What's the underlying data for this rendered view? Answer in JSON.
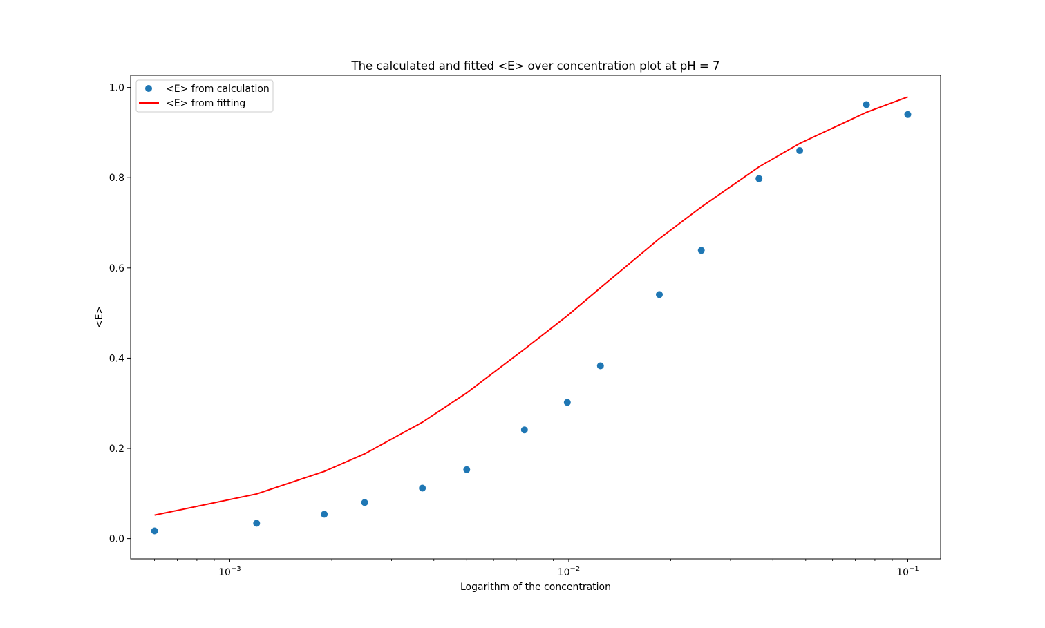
{
  "chart_data": {
    "type": "scatter",
    "title": "The calculated and fitted <E> over concentration plot at pH = 7",
    "xlabel": "Logarithm of the concentration",
    "ylabel": "<E>",
    "xscale": "log",
    "xlim": [
      0.00051,
      0.125
    ],
    "ylim": [
      -0.045,
      1.027
    ],
    "grid": false,
    "legend_position": "upper-left",
    "x_ticks": [
      {
        "value": 0.001,
        "base": "10",
        "exp": "−3"
      },
      {
        "value": 0.01,
        "base": "10",
        "exp": "−2"
      },
      {
        "value": 0.1,
        "base": "10",
        "exp": "−1"
      }
    ],
    "y_ticks": [
      {
        "value": 0.0,
        "label": "0.0"
      },
      {
        "value": 0.2,
        "label": "0.2"
      },
      {
        "value": 0.4,
        "label": "0.4"
      },
      {
        "value": 0.6,
        "label": "0.6"
      },
      {
        "value": 0.8,
        "label": "0.8"
      },
      {
        "value": 1.0,
        "label": "1.0"
      }
    ],
    "series": [
      {
        "name": "<E> from calculation",
        "kind": "scatter",
        "color": "#1f77b4",
        "x": [
          0.0006,
          0.0012,
          0.0019,
          0.0025,
          0.0037,
          0.005,
          0.0074,
          0.0099,
          0.0124,
          0.0185,
          0.0246,
          0.0364,
          0.048,
          0.0755,
          0.1
        ],
        "y": [
          0.017,
          0.034,
          0.054,
          0.08,
          0.112,
          0.153,
          0.241,
          0.302,
          0.383,
          0.541,
          0.639,
          0.798,
          0.86,
          0.962,
          0.94
        ]
      },
      {
        "name": "<E> from fitting",
        "kind": "line",
        "color": "#ff0000",
        "x": [
          0.0006,
          0.0012,
          0.0019,
          0.0025,
          0.0037,
          0.005,
          0.0074,
          0.0099,
          0.0124,
          0.0185,
          0.0246,
          0.0364,
          0.048,
          0.0755,
          0.1
        ],
        "y": [
          0.052,
          0.099,
          0.149,
          0.188,
          0.258,
          0.323,
          0.42,
          0.494,
          0.556,
          0.665,
          0.735,
          0.824,
          0.876,
          0.945,
          0.979
        ]
      }
    ]
  }
}
